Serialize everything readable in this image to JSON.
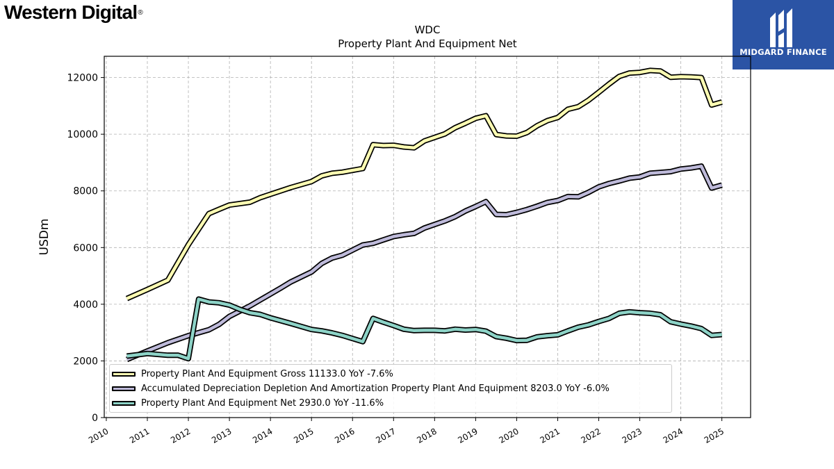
{
  "brand": {
    "company": "Western Digital",
    "trademark": "®"
  },
  "badge": {
    "name": "MIDGARD FINANCE",
    "icon": "midgard-logo-icon",
    "color": "#2b54a5"
  },
  "chart_data": {
    "type": "line",
    "title": "WDC",
    "subtitle": "Property Plant And Equipment Net",
    "ylabel": "USDm",
    "xlabel": "",
    "xlim": [
      2009.95,
      2025.7
    ],
    "ylim": [
      0,
      12750
    ],
    "yticks": [
      0,
      2000,
      4000,
      6000,
      8000,
      10000,
      12000
    ],
    "xticks": [
      "2010",
      "2011",
      "2012",
      "2013",
      "2014",
      "2015",
      "2016",
      "2017",
      "2018",
      "2019",
      "2020",
      "2021",
      "2022",
      "2023",
      "2024",
      "2025"
    ],
    "grid": true,
    "legend_position": "lower-left",
    "series": [
      {
        "name": "Property Plant And Equipment Gross  11133.0 YoY -7.6%",
        "color": "#ffffb3",
        "points": [
          [
            2010.5,
            4200
          ],
          [
            2011.0,
            4520
          ],
          [
            2011.5,
            4850
          ],
          [
            2012.0,
            6100
          ],
          [
            2012.5,
            7200
          ],
          [
            2012.75,
            7350
          ],
          [
            2013.0,
            7500
          ],
          [
            2013.5,
            7600
          ],
          [
            2013.75,
            7760
          ],
          [
            2014.25,
            8000
          ],
          [
            2014.5,
            8120
          ],
          [
            2015.0,
            8330
          ],
          [
            2015.25,
            8530
          ],
          [
            2015.5,
            8620
          ],
          [
            2015.75,
            8660
          ],
          [
            2016.25,
            8790
          ],
          [
            2016.5,
            9630
          ],
          [
            2016.75,
            9600
          ],
          [
            2017.0,
            9610
          ],
          [
            2017.25,
            9550
          ],
          [
            2017.5,
            9520
          ],
          [
            2017.75,
            9760
          ],
          [
            2018.25,
            10010
          ],
          [
            2018.5,
            10230
          ],
          [
            2018.75,
            10390
          ],
          [
            2019.0,
            10560
          ],
          [
            2019.25,
            10650
          ],
          [
            2019.5,
            9990
          ],
          [
            2019.75,
            9940
          ],
          [
            2020.0,
            9930
          ],
          [
            2020.25,
            10060
          ],
          [
            2020.5,
            10300
          ],
          [
            2020.75,
            10480
          ],
          [
            2021.0,
            10590
          ],
          [
            2021.25,
            10880
          ],
          [
            2021.5,
            10970
          ],
          [
            2021.75,
            11200
          ],
          [
            2022.0,
            11480
          ],
          [
            2022.25,
            11770
          ],
          [
            2022.5,
            12040
          ],
          [
            2022.75,
            12160
          ],
          [
            2023.0,
            12180
          ],
          [
            2023.25,
            12250
          ],
          [
            2023.5,
            12230
          ],
          [
            2023.75,
            12010
          ],
          [
            2024.0,
            12030
          ],
          [
            2024.25,
            12020
          ],
          [
            2024.5,
            12000
          ],
          [
            2024.75,
            11030
          ],
          [
            2025.0,
            11133
          ]
        ]
      },
      {
        "name": "Accumulated Depreciation Depletion And Amortization Property Plant And Equipment  8203.0 YoY -6.0%",
        "color": "#bebada",
        "points": [
          [
            2010.5,
            2050
          ],
          [
            2011.0,
            2350
          ],
          [
            2011.5,
            2640
          ],
          [
            2012.0,
            2890
          ],
          [
            2012.5,
            3100
          ],
          [
            2012.75,
            3290
          ],
          [
            2013.0,
            3570
          ],
          [
            2013.5,
            3940
          ],
          [
            2013.75,
            4150
          ],
          [
            2014.25,
            4570
          ],
          [
            2014.5,
            4790
          ],
          [
            2015.0,
            5140
          ],
          [
            2015.25,
            5440
          ],
          [
            2015.5,
            5630
          ],
          [
            2015.75,
            5730
          ],
          [
            2016.25,
            6090
          ],
          [
            2016.5,
            6150
          ],
          [
            2016.75,
            6270
          ],
          [
            2017.0,
            6390
          ],
          [
            2017.25,
            6450
          ],
          [
            2017.5,
            6500
          ],
          [
            2017.75,
            6690
          ],
          [
            2018.25,
            6940
          ],
          [
            2018.5,
            7090
          ],
          [
            2018.75,
            7290
          ],
          [
            2019.0,
            7450
          ],
          [
            2019.25,
            7620
          ],
          [
            2019.5,
            7170
          ],
          [
            2019.75,
            7160
          ],
          [
            2020.0,
            7240
          ],
          [
            2020.25,
            7340
          ],
          [
            2020.5,
            7460
          ],
          [
            2020.75,
            7590
          ],
          [
            2021.0,
            7660
          ],
          [
            2021.25,
            7800
          ],
          [
            2021.5,
            7790
          ],
          [
            2021.75,
            7950
          ],
          [
            2022.0,
            8140
          ],
          [
            2022.25,
            8260
          ],
          [
            2022.5,
            8350
          ],
          [
            2022.75,
            8450
          ],
          [
            2023.0,
            8490
          ],
          [
            2023.25,
            8620
          ],
          [
            2023.5,
            8650
          ],
          [
            2023.75,
            8680
          ],
          [
            2024.0,
            8770
          ],
          [
            2024.25,
            8810
          ],
          [
            2024.5,
            8870
          ],
          [
            2024.75,
            8100
          ],
          [
            2025.0,
            8203
          ]
        ]
      },
      {
        "name": "Property Plant And Equipment Net  2930.0 YoY -11.6%",
        "color": "#8dd3c7",
        "points": [
          [
            2010.5,
            2170
          ],
          [
            2011.0,
            2260
          ],
          [
            2011.5,
            2200
          ],
          [
            2011.75,
            2200
          ],
          [
            2012.0,
            2080
          ],
          [
            2012.25,
            4180
          ],
          [
            2012.5,
            4080
          ],
          [
            2012.75,
            4050
          ],
          [
            2013.0,
            3970
          ],
          [
            2013.25,
            3820
          ],
          [
            2013.5,
            3700
          ],
          [
            2013.75,
            3640
          ],
          [
            2014.0,
            3520
          ],
          [
            2014.5,
            3320
          ],
          [
            2015.0,
            3110
          ],
          [
            2015.25,
            3060
          ],
          [
            2015.5,
            2990
          ],
          [
            2015.75,
            2900
          ],
          [
            2016.0,
            2790
          ],
          [
            2016.25,
            2680
          ],
          [
            2016.5,
            3500
          ],
          [
            2016.75,
            3370
          ],
          [
            2017.0,
            3250
          ],
          [
            2017.25,
            3120
          ],
          [
            2017.5,
            3070
          ],
          [
            2017.75,
            3080
          ],
          [
            2018.0,
            3080
          ],
          [
            2018.25,
            3060
          ],
          [
            2018.5,
            3120
          ],
          [
            2018.75,
            3090
          ],
          [
            2019.0,
            3110
          ],
          [
            2019.25,
            3050
          ],
          [
            2019.5,
            2860
          ],
          [
            2019.75,
            2800
          ],
          [
            2020.0,
            2720
          ],
          [
            2020.25,
            2730
          ],
          [
            2020.5,
            2850
          ],
          [
            2020.75,
            2890
          ],
          [
            2021.0,
            2920
          ],
          [
            2021.25,
            3060
          ],
          [
            2021.5,
            3190
          ],
          [
            2021.75,
            3270
          ],
          [
            2022.0,
            3390
          ],
          [
            2022.25,
            3500
          ],
          [
            2022.5,
            3680
          ],
          [
            2022.75,
            3730
          ],
          [
            2023.0,
            3700
          ],
          [
            2023.25,
            3680
          ],
          [
            2023.5,
            3630
          ],
          [
            2023.75,
            3380
          ],
          [
            2024.0,
            3300
          ],
          [
            2024.25,
            3230
          ],
          [
            2024.5,
            3140
          ],
          [
            2024.75,
            2900
          ],
          [
            2025.0,
            2930
          ]
        ]
      }
    ]
  }
}
